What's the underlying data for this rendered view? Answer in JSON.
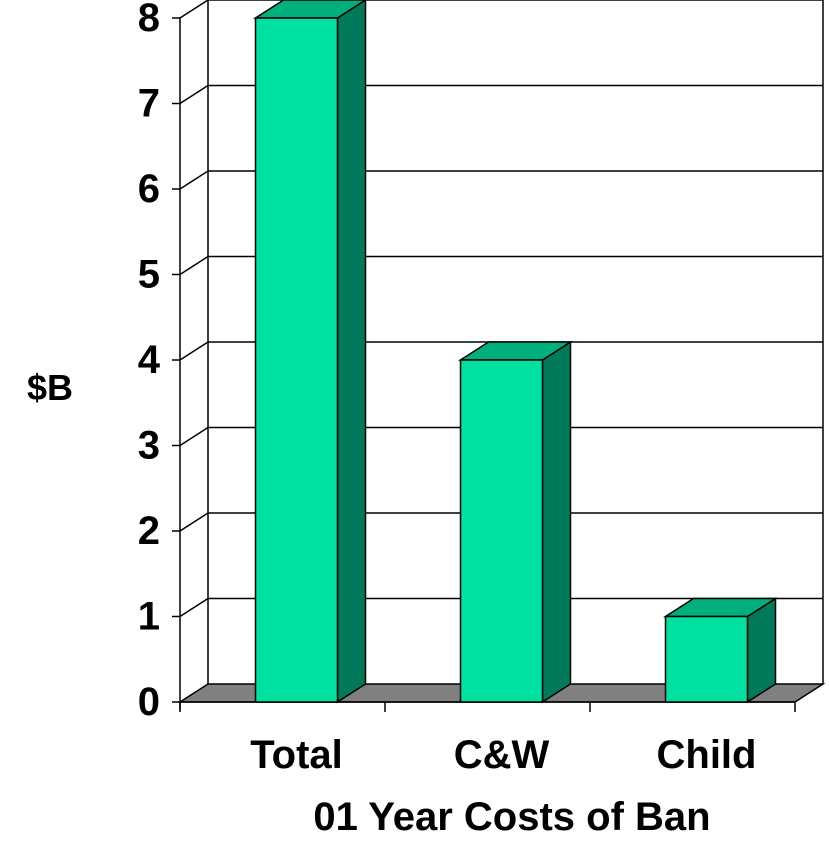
{
  "chart_data": {
    "type": "bar",
    "categories": [
      "Total",
      "C&W",
      "Child"
    ],
    "values": [
      8,
      4,
      1
    ],
    "title": "",
    "xlabel": "01 Year Costs of Ban",
    "ylabel": "$B",
    "ylim": [
      0,
      8
    ],
    "yticks": [
      0,
      1,
      2,
      3,
      4,
      5,
      6,
      7,
      8
    ],
    "grid": true,
    "legend": "none"
  },
  "colors": {
    "bar_front": "#00e0a0",
    "bar_top": "#00b07c",
    "bar_side": "#007a58",
    "floor": "#808080",
    "grid": "#000000"
  }
}
